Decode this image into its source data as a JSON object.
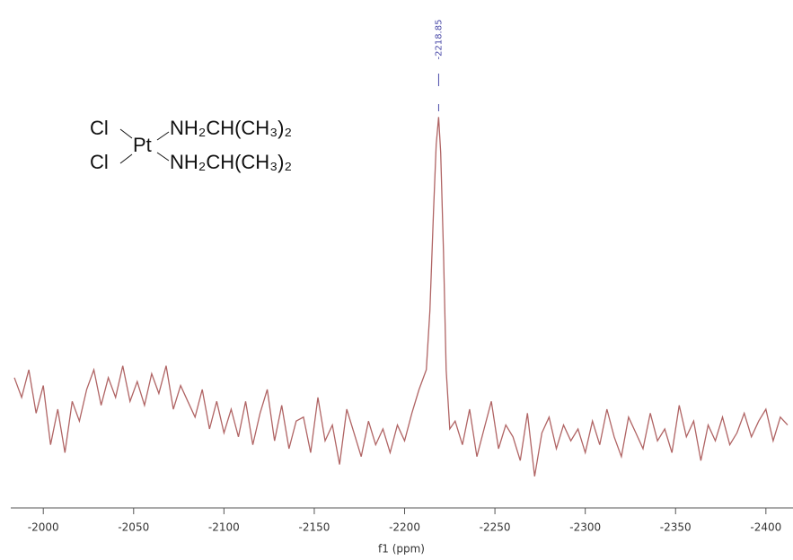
{
  "chart_data": {
    "type": "line",
    "x_label": "f1 (ppm)",
    "x": [
      -1984,
      -1988,
      -1992,
      -1996,
      -2000,
      -2004,
      -2008,
      -2012,
      -2016,
      -2020,
      -2024,
      -2028,
      -2032,
      -2036,
      -2040,
      -2044,
      -2048,
      -2052,
      -2056,
      -2060,
      -2064,
      -2068,
      -2072,
      -2076,
      -2080,
      -2084,
      -2088,
      -2092,
      -2096,
      -2100,
      -2104,
      -2108,
      -2112,
      -2116,
      -2120,
      -2124,
      -2128,
      -2132,
      -2136,
      -2140,
      -2144,
      -2148,
      -2152,
      -2156,
      -2160,
      -2164,
      -2168,
      -2172,
      -2176,
      -2180,
      -2184,
      -2188,
      -2192,
      -2196,
      -2200,
      -2204,
      -2208,
      -2212,
      -2214,
      -2216,
      -2217.5,
      -2218.85,
      -2220,
      -2221.5,
      -2223,
      -2225,
      -2228,
      -2232,
      -2236,
      -2240,
      -2244,
      -2248,
      -2252,
      -2256,
      -2260,
      -2264,
      -2268,
      -2272,
      -2276,
      -2280,
      -2284,
      -2288,
      -2292,
      -2296,
      -2300,
      -2304,
      -2308,
      -2312,
      -2316,
      -2320,
      -2324,
      -2328,
      -2332,
      -2336,
      -2340,
      -2344,
      -2348,
      -2352,
      -2356,
      -2360,
      -2364,
      -2368,
      -2372,
      -2376,
      -2380,
      -2384,
      -2388,
      -2392,
      -2396,
      -2400,
      -2404,
      -2408,
      -2412
    ],
    "values": [
      33,
      28,
      35,
      24,
      31,
      16,
      25,
      14,
      27,
      22,
      30,
      35,
      26,
      33,
      28,
      36,
      27,
      32,
      26,
      34,
      29,
      36,
      25,
      31,
      27,
      23,
      30,
      20,
      27,
      19,
      25,
      18,
      27,
      16,
      24,
      30,
      17,
      26,
      15,
      22,
      23,
      14,
      28,
      17,
      21,
      11,
      25,
      19,
      13,
      22,
      16,
      20,
      14,
      21,
      17,
      24,
      30,
      35,
      50,
      75,
      92,
      99,
      90,
      65,
      35,
      20,
      22,
      16,
      25,
      13,
      20,
      27,
      15,
      21,
      18,
      12,
      24,
      8,
      19,
      23,
      15,
      21,
      17,
      20,
      14,
      22,
      16,
      25,
      18,
      13,
      23,
      19,
      15,
      24,
      17,
      20,
      14,
      26,
      18,
      22,
      12,
      21,
      17,
      23,
      16,
      19,
      24,
      18,
      22,
      25,
      17,
      23,
      21
    ],
    "color": "#b06464",
    "xlim": [
      -1982,
      -2415
    ],
    "ylim": [
      0,
      100
    ],
    "xticks": [
      -2000,
      -2050,
      -2100,
      -2150,
      -2200,
      -2250,
      -2300,
      -2350,
      -2400
    ],
    "peak_label": {
      "value": -2218.85,
      "label": "-2218.85"
    },
    "structure": {
      "ligands": [
        "Cl",
        "Cl"
      ],
      "metal": "Pt",
      "amines": [
        "NH₂CH(CH₃)₂",
        "NH₂CH(CH₃)₂"
      ]
    }
  }
}
